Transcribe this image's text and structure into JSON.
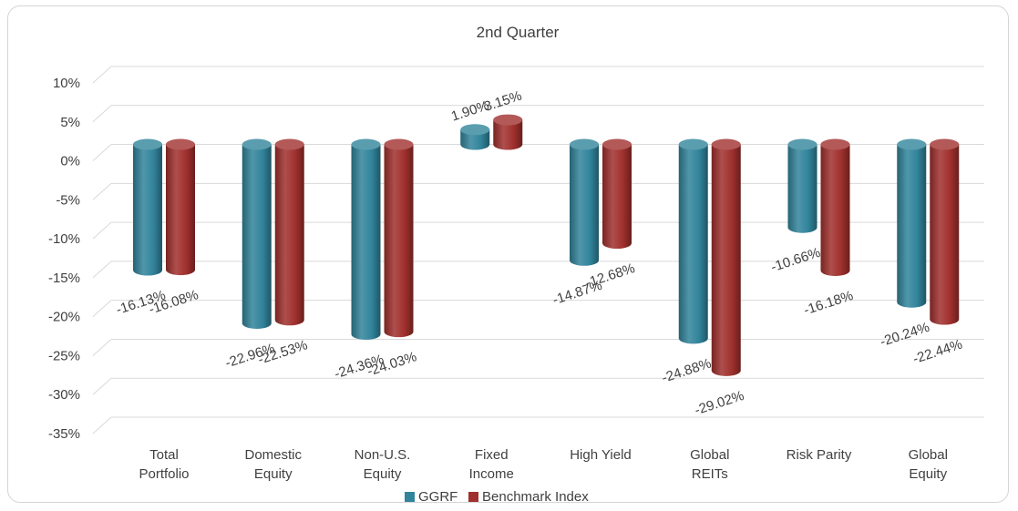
{
  "chart_data": {
    "type": "bar",
    "title": "2nd  Quarter",
    "categories": [
      [
        "Total",
        "Portfolio"
      ],
      [
        "Domestic",
        "Equity"
      ],
      [
        "Non-U.S.",
        "Equity"
      ],
      [
        "Fixed",
        "Income"
      ],
      [
        "High Yield"
      ],
      [
        "Global",
        "REITs"
      ],
      [
        "Risk Parity"
      ],
      [
        "Global",
        "Equity"
      ]
    ],
    "series": [
      {
        "name": "GGRF",
        "color": "#31849B",
        "values": [
          -16.13,
          -22.96,
          -24.36,
          1.9,
          -14.87,
          -24.88,
          -10.66,
          -20.24
        ],
        "labels": [
          "-16.13%",
          "-22.96%",
          "-24.36%",
          "1.90%",
          "-14.87%",
          "-24.88%",
          "-10.66%",
          "-20.24%"
        ]
      },
      {
        "name": "Benchmark Index",
        "color": "#A0302D",
        "values": [
          -16.08,
          -22.53,
          -24.03,
          3.15,
          -12.68,
          -29.02,
          -16.18,
          -22.44
        ],
        "labels": [
          "-16.08%",
          "-22.53%",
          "-24.03%",
          "3.15%",
          "-12.68%",
          "-29.02%",
          "-16.18%",
          "-22.44%"
        ]
      }
    ],
    "y_ticks": [
      10,
      5,
      0,
      -5,
      -10,
      -15,
      -20,
      -25,
      -30,
      -35
    ],
    "y_tick_labels": [
      "10%",
      "5%",
      "0%",
      "-5%",
      "-10%",
      "-15%",
      "-20%",
      "-25%",
      "-30%",
      "-35%"
    ],
    "ylim": [
      -35,
      10
    ],
    "grid": true,
    "legend": "bottom",
    "style": "3d-cylinder"
  }
}
